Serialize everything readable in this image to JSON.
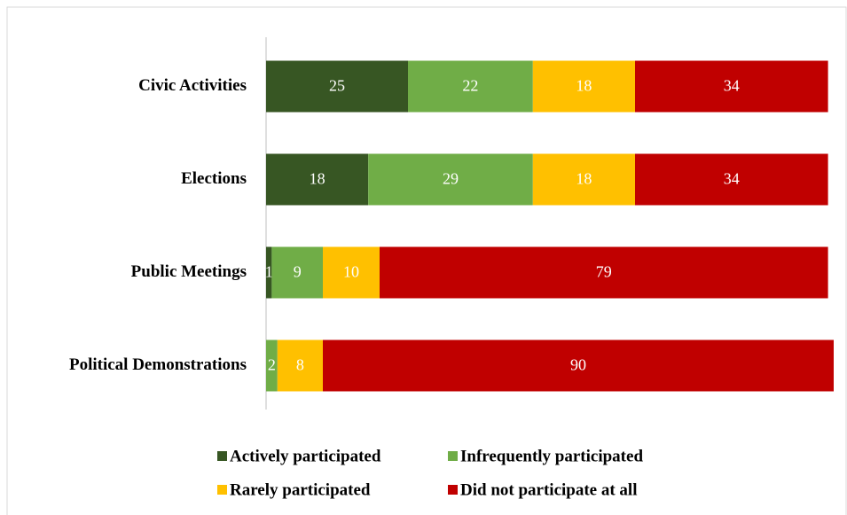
{
  "chart_data": {
    "type": "stacked-bar-horizontal",
    "categories": [
      "Civic Activities",
      "Elections",
      "Public Meetings",
      "Political Demonstrations"
    ],
    "series": [
      {
        "name": "Actively participated",
        "color": "#375623",
        "values": [
          25,
          18,
          1,
          null
        ]
      },
      {
        "name": "Infrequently participated",
        "color": "#70ad47",
        "values": [
          22,
          29,
          9,
          2
        ]
      },
      {
        "name": "Rarely participated",
        "color": "#ffc000",
        "values": [
          18,
          18,
          10,
          8
        ]
      },
      {
        "name": "Did not participate at all",
        "color": "#c00000",
        "values": [
          34,
          34,
          79,
          90
        ]
      }
    ],
    "xlim": [
      0,
      100
    ],
    "legend": "bottom"
  }
}
